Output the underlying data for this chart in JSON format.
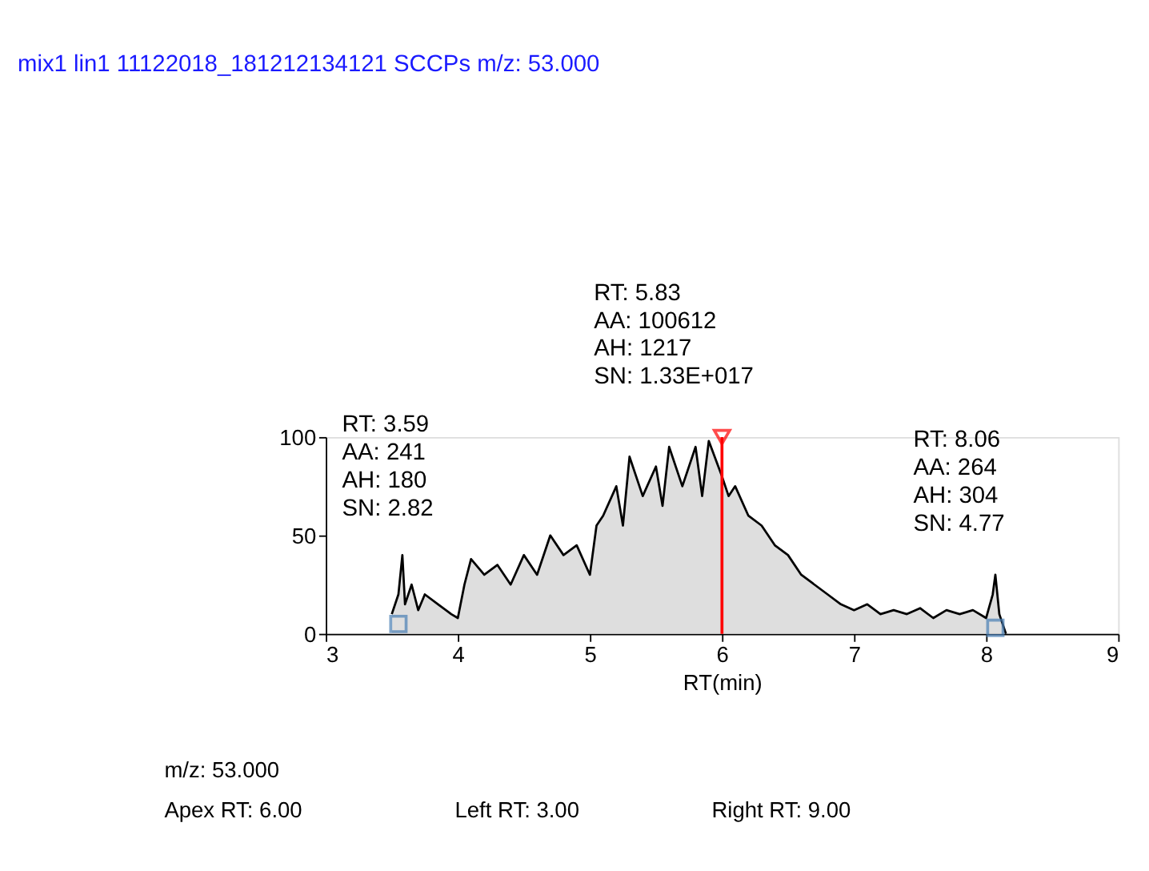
{
  "chart_data": {
    "type": "area",
    "title": "mix1 lin1 11122018_181212134121   SCCPs   m/z: 53.000",
    "xlabel": "RT(min)",
    "xlim": [
      3,
      9
    ],
    "xticks": [
      3,
      4,
      5,
      6,
      7,
      8,
      9
    ],
    "ylim": [
      0,
      100
    ],
    "yticks": [
      0,
      50,
      100
    ],
    "grid": false,
    "series": [
      {
        "color": "#000000",
        "x": [
          3.5,
          3.55,
          3.58,
          3.6,
          3.65,
          3.7,
          3.75,
          3.85,
          3.95,
          4.0,
          4.05,
          4.1,
          4.2,
          4.3,
          4.4,
          4.5,
          4.6,
          4.7,
          4.8,
          4.9,
          5.0,
          5.05,
          5.1,
          5.2,
          5.25,
          5.3,
          5.4,
          5.5,
          5.55,
          5.6,
          5.7,
          5.8,
          5.85,
          5.9,
          6.0,
          6.05,
          6.1,
          6.2,
          6.3,
          6.4,
          6.5,
          6.6,
          6.7,
          6.8,
          6.9,
          7.0,
          7.1,
          7.2,
          7.3,
          7.4,
          7.5,
          7.6,
          7.7,
          7.8,
          7.9,
          8.0,
          8.05,
          8.07,
          8.1,
          8.15
        ],
        "values": [
          10,
          20,
          40,
          15,
          25,
          12,
          20,
          15,
          10,
          8,
          25,
          38,
          30,
          35,
          25,
          40,
          30,
          50,
          40,
          45,
          30,
          55,
          60,
          75,
          55,
          90,
          70,
          85,
          65,
          95,
          75,
          95,
          70,
          98,
          80,
          70,
          75,
          60,
          55,
          45,
          40,
          30,
          25,
          20,
          15,
          12,
          15,
          10,
          12,
          10,
          13,
          8,
          12,
          10,
          12,
          8,
          20,
          30,
          10,
          0
        ]
      },
      {
        "type": "scatter",
        "marker": "square",
        "color": "#4a7fb5",
        "x": [
          3.55,
          8.07
        ],
        "values": [
          5,
          3
        ]
      },
      {
        "type": "scatter",
        "marker": "triangle",
        "color": "#ff0000",
        "x": [
          6
        ],
        "values": [
          100
        ]
      }
    ],
    "ref_lines": [
      {
        "axis": "x",
        "value": 6,
        "color": "#ff0000"
      }
    ],
    "annotations": [
      {
        "text": "RT: 3.59\nAA: 241\nAH: 180\nSN: 2.82",
        "x": 3.59,
        "y": 40
      },
      {
        "text": "RT: 5.83\nAA: 100612\nAH: 1217\nSN: 1.33E+017",
        "x": 5.83,
        "y": 98
      },
      {
        "text": "RT: 8.06\nAA: 264\nAH: 304\nSN: 4.77",
        "x": 8.06,
        "y": 30
      },
      "m/z: 53.000",
      "Apex RT: 6.00",
      "Left RT: 3.00",
      "Right RT: 9.00"
    ]
  }
}
